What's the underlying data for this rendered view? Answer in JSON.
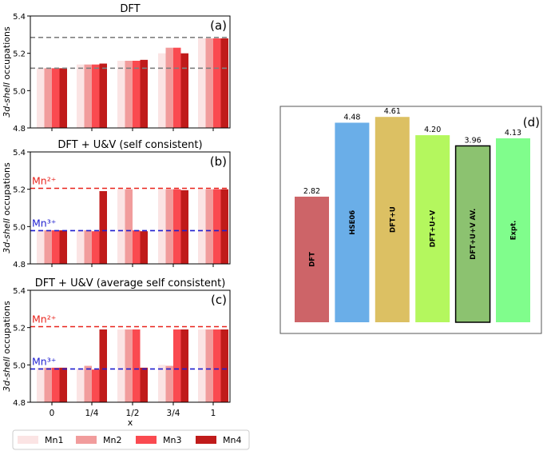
{
  "chart_data": [
    {
      "type": "bar",
      "panel": "(a)",
      "title": "DFT",
      "ylabel": "3d-shell occupations",
      "ylim": [
        4.8,
        5.4
      ],
      "yticks": [
        "4.8",
        "5.0",
        "5.2",
        "5.4"
      ],
      "categories": [
        "0",
        "1/4",
        "1/2",
        "3/4",
        "1"
      ],
      "series": [
        {
          "name": "Mn1",
          "values": [
            5.12,
            5.14,
            5.16,
            5.2,
            5.28
          ]
        },
        {
          "name": "Mn2",
          "values": [
            5.12,
            5.14,
            5.16,
            5.23,
            5.28
          ]
        },
        {
          "name": "Mn3",
          "values": [
            5.12,
            5.14,
            5.16,
            5.23,
            5.28
          ]
        },
        {
          "name": "Mn4",
          "values": [
            5.12,
            5.145,
            5.165,
            5.2,
            5.28
          ]
        }
      ],
      "reference_lines": [
        {
          "value": 5.285,
          "label": "",
          "color": "#808080"
        },
        {
          "value": 5.12,
          "label": "",
          "color": "#808080"
        }
      ]
    },
    {
      "type": "bar",
      "panel": "(b)",
      "title": "DFT + U&V (self consistent)",
      "ylabel": "3d-shell occupations",
      "ylim": [
        4.8,
        5.4
      ],
      "yticks": [
        "4.8",
        "5.0",
        "5.2",
        "5.4"
      ],
      "categories": [
        "0",
        "1/4",
        "1/2",
        "3/4",
        "1"
      ],
      "series": [
        {
          "name": "Mn1",
          "values": [
            4.98,
            4.98,
            5.2,
            5.2,
            5.2
          ]
        },
        {
          "name": "Mn2",
          "values": [
            4.98,
            4.98,
            5.2,
            5.2,
            5.2
          ]
        },
        {
          "name": "Mn3",
          "values": [
            4.98,
            4.975,
            4.98,
            5.2,
            5.2
          ]
        },
        {
          "name": "Mn4",
          "values": [
            4.98,
            5.19,
            4.975,
            5.195,
            5.2
          ]
        }
      ],
      "reference_lines": [
        {
          "value": 5.205,
          "label": "Mn²⁺",
          "color": "#e8221b"
        },
        {
          "value": 4.978,
          "label": "Mn³⁺",
          "color": "#1f1fd0"
        }
      ]
    },
    {
      "type": "bar",
      "panel": "(c)",
      "title": "DFT + U&V (average self consistent)",
      "ylabel": "3d-shell occupations",
      "ylim": [
        4.8,
        5.4
      ],
      "yticks": [
        "4.8",
        "5.0",
        "5.2",
        "5.4"
      ],
      "xlabel": "x",
      "categories": [
        "0",
        "1/4",
        "1/2",
        "3/4",
        "1"
      ],
      "series": [
        {
          "name": "Mn1",
          "values": [
            4.985,
            4.98,
            5.19,
            5.0,
            5.19
          ]
        },
        {
          "name": "Mn2",
          "values": [
            4.985,
            4.995,
            5.19,
            4.995,
            5.19
          ]
        },
        {
          "name": "Mn3",
          "values": [
            4.985,
            4.975,
            5.19,
            5.19,
            5.19
          ]
        },
        {
          "name": "Mn4",
          "values": [
            4.985,
            5.19,
            4.985,
            5.19,
            5.19
          ]
        }
      ],
      "reference_lines": [
        {
          "value": 5.205,
          "label": "Mn²⁺",
          "color": "#e8221b"
        },
        {
          "value": 4.978,
          "label": "Mn³⁺",
          "color": "#1f1fd0"
        }
      ]
    },
    {
      "type": "bar",
      "panel": "(d)",
      "title": "",
      "categories": [
        "DFT",
        "HSE06",
        "DFT+U",
        "DFT+U+V",
        "DFT+U+V AV.",
        "Expt."
      ],
      "values": [
        2.82,
        4.48,
        4.61,
        4.2,
        3.96,
        4.13
      ],
      "value_labels": [
        "2.82",
        "4.48",
        "4.61",
        "4.20",
        "3.96",
        "4.13"
      ],
      "colors": [
        "#cd6468",
        "#6aaee8",
        "#dcc063",
        "#b4f75e",
        "#8cc270",
        "#80fd8c"
      ],
      "ylim": [
        0,
        4.9
      ]
    }
  ],
  "legend": {
    "items": [
      {
        "label": "Mn1",
        "color": "#fbe4e4"
      },
      {
        "label": "Mn2",
        "color": "#f19c9c"
      },
      {
        "label": "Mn3",
        "color": "#fa4a50"
      },
      {
        "label": "Mn4",
        "color": "#c01b1a"
      }
    ]
  }
}
